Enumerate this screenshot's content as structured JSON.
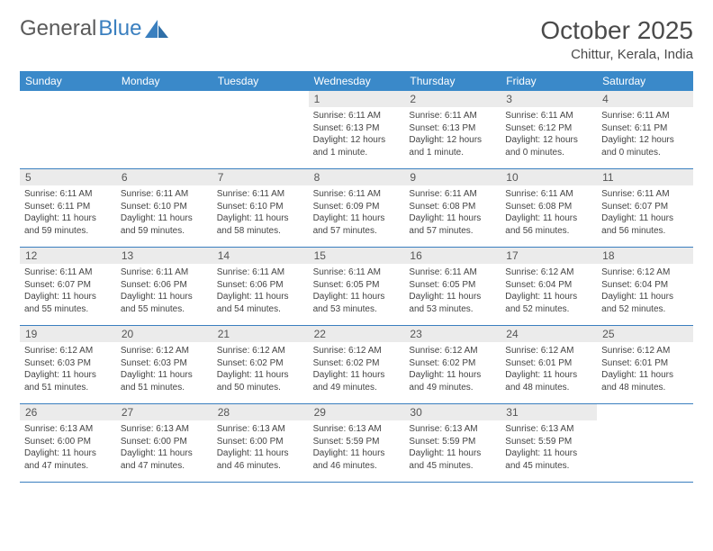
{
  "logo": {
    "text1": "General",
    "text2": "Blue"
  },
  "title": "October 2025",
  "location": "Chittur, Kerala, India",
  "colors": {
    "header_bg": "#3a89c9",
    "header_text": "#ffffff",
    "daynum_bg": "#ebebeb",
    "border": "#3a7fbf",
    "logo_gray": "#5a5a5a",
    "logo_blue": "#3a7fbf"
  },
  "weekdays": [
    "Sunday",
    "Monday",
    "Tuesday",
    "Wednesday",
    "Thursday",
    "Friday",
    "Saturday"
  ],
  "weeks": [
    [
      {
        "num": "",
        "sunrise": "",
        "sunset": "",
        "daylight": ""
      },
      {
        "num": "",
        "sunrise": "",
        "sunset": "",
        "daylight": ""
      },
      {
        "num": "",
        "sunrise": "",
        "sunset": "",
        "daylight": ""
      },
      {
        "num": "1",
        "sunrise": "Sunrise: 6:11 AM",
        "sunset": "Sunset: 6:13 PM",
        "daylight": "Daylight: 12 hours and 1 minute."
      },
      {
        "num": "2",
        "sunrise": "Sunrise: 6:11 AM",
        "sunset": "Sunset: 6:13 PM",
        "daylight": "Daylight: 12 hours and 1 minute."
      },
      {
        "num": "3",
        "sunrise": "Sunrise: 6:11 AM",
        "sunset": "Sunset: 6:12 PM",
        "daylight": "Daylight: 12 hours and 0 minutes."
      },
      {
        "num": "4",
        "sunrise": "Sunrise: 6:11 AM",
        "sunset": "Sunset: 6:11 PM",
        "daylight": "Daylight: 12 hours and 0 minutes."
      }
    ],
    [
      {
        "num": "5",
        "sunrise": "Sunrise: 6:11 AM",
        "sunset": "Sunset: 6:11 PM",
        "daylight": "Daylight: 11 hours and 59 minutes."
      },
      {
        "num": "6",
        "sunrise": "Sunrise: 6:11 AM",
        "sunset": "Sunset: 6:10 PM",
        "daylight": "Daylight: 11 hours and 59 minutes."
      },
      {
        "num": "7",
        "sunrise": "Sunrise: 6:11 AM",
        "sunset": "Sunset: 6:10 PM",
        "daylight": "Daylight: 11 hours and 58 minutes."
      },
      {
        "num": "8",
        "sunrise": "Sunrise: 6:11 AM",
        "sunset": "Sunset: 6:09 PM",
        "daylight": "Daylight: 11 hours and 57 minutes."
      },
      {
        "num": "9",
        "sunrise": "Sunrise: 6:11 AM",
        "sunset": "Sunset: 6:08 PM",
        "daylight": "Daylight: 11 hours and 57 minutes."
      },
      {
        "num": "10",
        "sunrise": "Sunrise: 6:11 AM",
        "sunset": "Sunset: 6:08 PM",
        "daylight": "Daylight: 11 hours and 56 minutes."
      },
      {
        "num": "11",
        "sunrise": "Sunrise: 6:11 AM",
        "sunset": "Sunset: 6:07 PM",
        "daylight": "Daylight: 11 hours and 56 minutes."
      }
    ],
    [
      {
        "num": "12",
        "sunrise": "Sunrise: 6:11 AM",
        "sunset": "Sunset: 6:07 PM",
        "daylight": "Daylight: 11 hours and 55 minutes."
      },
      {
        "num": "13",
        "sunrise": "Sunrise: 6:11 AM",
        "sunset": "Sunset: 6:06 PM",
        "daylight": "Daylight: 11 hours and 55 minutes."
      },
      {
        "num": "14",
        "sunrise": "Sunrise: 6:11 AM",
        "sunset": "Sunset: 6:06 PM",
        "daylight": "Daylight: 11 hours and 54 minutes."
      },
      {
        "num": "15",
        "sunrise": "Sunrise: 6:11 AM",
        "sunset": "Sunset: 6:05 PM",
        "daylight": "Daylight: 11 hours and 53 minutes."
      },
      {
        "num": "16",
        "sunrise": "Sunrise: 6:11 AM",
        "sunset": "Sunset: 6:05 PM",
        "daylight": "Daylight: 11 hours and 53 minutes."
      },
      {
        "num": "17",
        "sunrise": "Sunrise: 6:12 AM",
        "sunset": "Sunset: 6:04 PM",
        "daylight": "Daylight: 11 hours and 52 minutes."
      },
      {
        "num": "18",
        "sunrise": "Sunrise: 6:12 AM",
        "sunset": "Sunset: 6:04 PM",
        "daylight": "Daylight: 11 hours and 52 minutes."
      }
    ],
    [
      {
        "num": "19",
        "sunrise": "Sunrise: 6:12 AM",
        "sunset": "Sunset: 6:03 PM",
        "daylight": "Daylight: 11 hours and 51 minutes."
      },
      {
        "num": "20",
        "sunrise": "Sunrise: 6:12 AM",
        "sunset": "Sunset: 6:03 PM",
        "daylight": "Daylight: 11 hours and 51 minutes."
      },
      {
        "num": "21",
        "sunrise": "Sunrise: 6:12 AM",
        "sunset": "Sunset: 6:02 PM",
        "daylight": "Daylight: 11 hours and 50 minutes."
      },
      {
        "num": "22",
        "sunrise": "Sunrise: 6:12 AM",
        "sunset": "Sunset: 6:02 PM",
        "daylight": "Daylight: 11 hours and 49 minutes."
      },
      {
        "num": "23",
        "sunrise": "Sunrise: 6:12 AM",
        "sunset": "Sunset: 6:02 PM",
        "daylight": "Daylight: 11 hours and 49 minutes."
      },
      {
        "num": "24",
        "sunrise": "Sunrise: 6:12 AM",
        "sunset": "Sunset: 6:01 PM",
        "daylight": "Daylight: 11 hours and 48 minutes."
      },
      {
        "num": "25",
        "sunrise": "Sunrise: 6:12 AM",
        "sunset": "Sunset: 6:01 PM",
        "daylight": "Daylight: 11 hours and 48 minutes."
      }
    ],
    [
      {
        "num": "26",
        "sunrise": "Sunrise: 6:13 AM",
        "sunset": "Sunset: 6:00 PM",
        "daylight": "Daylight: 11 hours and 47 minutes."
      },
      {
        "num": "27",
        "sunrise": "Sunrise: 6:13 AM",
        "sunset": "Sunset: 6:00 PM",
        "daylight": "Daylight: 11 hours and 47 minutes."
      },
      {
        "num": "28",
        "sunrise": "Sunrise: 6:13 AM",
        "sunset": "Sunset: 6:00 PM",
        "daylight": "Daylight: 11 hours and 46 minutes."
      },
      {
        "num": "29",
        "sunrise": "Sunrise: 6:13 AM",
        "sunset": "Sunset: 5:59 PM",
        "daylight": "Daylight: 11 hours and 46 minutes."
      },
      {
        "num": "30",
        "sunrise": "Sunrise: 6:13 AM",
        "sunset": "Sunset: 5:59 PM",
        "daylight": "Daylight: 11 hours and 45 minutes."
      },
      {
        "num": "31",
        "sunrise": "Sunrise: 6:13 AM",
        "sunset": "Sunset: 5:59 PM",
        "daylight": "Daylight: 11 hours and 45 minutes."
      },
      {
        "num": "",
        "sunrise": "",
        "sunset": "",
        "daylight": ""
      }
    ]
  ]
}
